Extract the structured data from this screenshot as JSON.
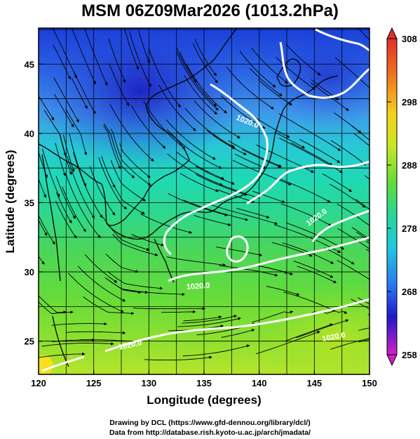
{
  "title": "MSM 06Z09Mar2026 (1013.2hPa)",
  "x_axis": {
    "label": "Longitude (degrees)",
    "ticks": [
      "120",
      "125",
      "130",
      "135",
      "140",
      "145",
      "150"
    ]
  },
  "y_axis": {
    "label": "Latitude  (degrees)",
    "ticks": [
      "25",
      "30",
      "35",
      "40",
      "45"
    ]
  },
  "colorbar": {
    "ticks": [
      "308",
      "298",
      "288",
      "278",
      "268",
      "258"
    ]
  },
  "contour_labels": [
    "1020.0",
    "1020.0",
    "1020.0",
    "1020.0",
    "1020.0"
  ],
  "credits": {
    "line1": "Drawing by DCL (https://www.gfd-dennou.org/library/dcl/)",
    "line2": "Data from http://database.rish.kyoto-u.ac.jp/arch/jmadata/"
  },
  "map_data": {
    "type": "map",
    "lon_range": [
      120,
      150
    ],
    "lat_range": [
      22.6,
      47.6
    ],
    "field": "temperature",
    "field_range": [
      258,
      308
    ],
    "contour_value": 1020.0
  }
}
